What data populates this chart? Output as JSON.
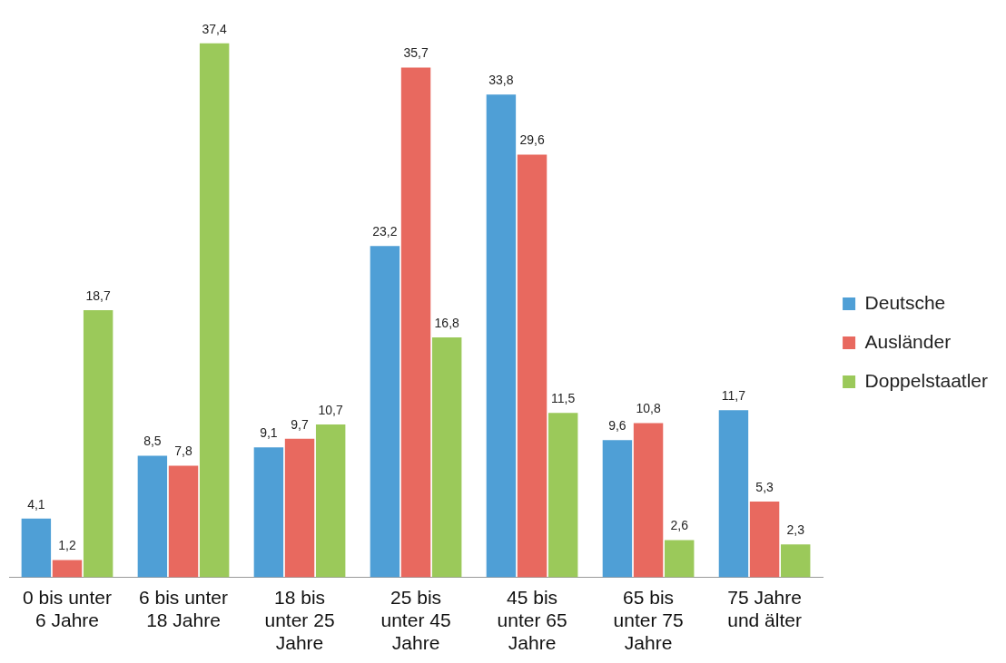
{
  "chart_data": {
    "type": "bar",
    "categories": [
      "0 bis unter 6 Jahre",
      "6 bis unter 18 Jahre",
      "18 bis unter 25 Jahre",
      "25 bis unter 45 Jahre",
      "45 bis unter 65 Jahre",
      "65 bis unter 75 Jahre",
      "75 Jahre und älter"
    ],
    "series": [
      {
        "name": "Deutsche",
        "color": "#4f9fd6",
        "values": [
          4.1,
          8.5,
          9.1,
          23.2,
          33.8,
          9.6,
          11.7
        ],
        "value_labels": [
          "4,1",
          "8,5",
          "9,1",
          "23,2",
          "33,8",
          "9,6",
          "11,7"
        ]
      },
      {
        "name": "Ausländer",
        "color": "#e8695f",
        "values": [
          1.2,
          7.8,
          9.7,
          35.7,
          29.6,
          10.8,
          5.3
        ],
        "value_labels": [
          "1,2",
          "7,8",
          "9,7",
          "35,7",
          "29,6",
          "10,8",
          "5,3"
        ]
      },
      {
        "name": "Doppelstaatler",
        "color": "#9bc95a",
        "values": [
          18.7,
          37.4,
          10.7,
          16.8,
          11.5,
          2.6,
          2.3
        ],
        "value_labels": [
          "18,7",
          "37,4",
          "10,7",
          "16,8",
          "11,5",
          "2,6",
          "2,3"
        ]
      }
    ],
    "legend": "right",
    "grid": false,
    "tick_labels": "x"
  }
}
